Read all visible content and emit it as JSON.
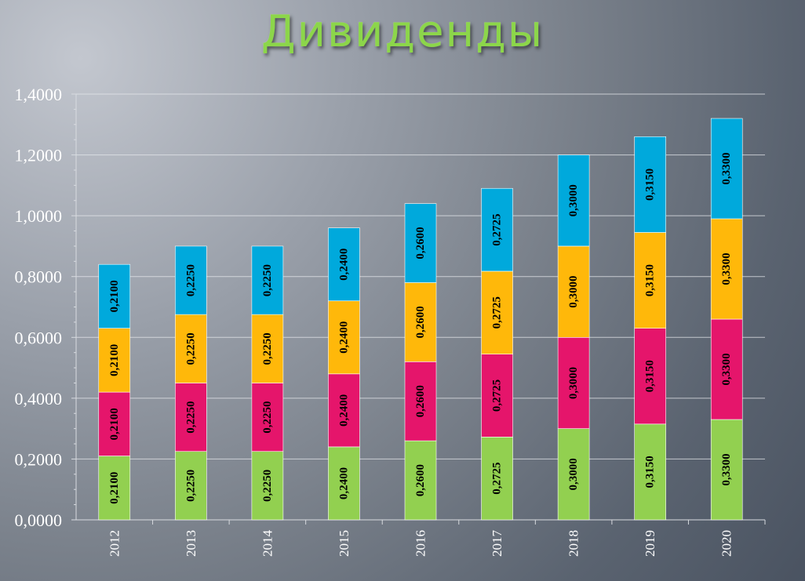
{
  "title": "Дивиденды",
  "chart_data": {
    "type": "bar",
    "stacked": true,
    "title": "Дивиденды",
    "xlabel": "",
    "ylabel": "",
    "categories": [
      "2012",
      "2013",
      "2014",
      "2015",
      "2016",
      "2017",
      "2018",
      "2019",
      "2020"
    ],
    "ylim": [
      0,
      1.4
    ],
    "yticks": [
      "0,0000",
      "0,2000",
      "0,4000",
      "0,6000",
      "0,8000",
      "1,0000",
      "1,2000",
      "1,4000"
    ],
    "grid": true,
    "series": [
      {
        "color": "#92d050",
        "values": [
          0.21,
          0.225,
          0.225,
          0.24,
          0.26,
          0.2725,
          0.3,
          0.315,
          0.33
        ],
        "labels": [
          "0,2100",
          "0,2250",
          "0,2250",
          "0,2400",
          "0,2600",
          "0,2725",
          "0,3000",
          "0,3150",
          "0,3300"
        ]
      },
      {
        "color": "#e5156b",
        "values": [
          0.21,
          0.225,
          0.225,
          0.24,
          0.26,
          0.2725,
          0.3,
          0.315,
          0.33
        ],
        "labels": [
          "0,2100",
          "0,2250",
          "0,2250",
          "0,2400",
          "0,2600",
          "0,2725",
          "0,3000",
          "0,3150",
          "0,3300"
        ]
      },
      {
        "color": "#ffb80a",
        "values": [
          0.21,
          0.225,
          0.225,
          0.24,
          0.26,
          0.2725,
          0.3,
          0.315,
          0.33
        ],
        "labels": [
          "0,2100",
          "0,2250",
          "0,2250",
          "0,2400",
          "0,2600",
          "0,2725",
          "0,3000",
          "0,3150",
          "0,3300"
        ]
      },
      {
        "color": "#00a9dc",
        "values": [
          0.21,
          0.225,
          0.225,
          0.24,
          0.26,
          0.2725,
          0.3,
          0.315,
          0.33
        ],
        "labels": [
          "0,2100",
          "0,2250",
          "0,2250",
          "0,2400",
          "0,2600",
          "0,2725",
          "0,3000",
          "0,3150",
          "0,3300"
        ]
      }
    ]
  }
}
